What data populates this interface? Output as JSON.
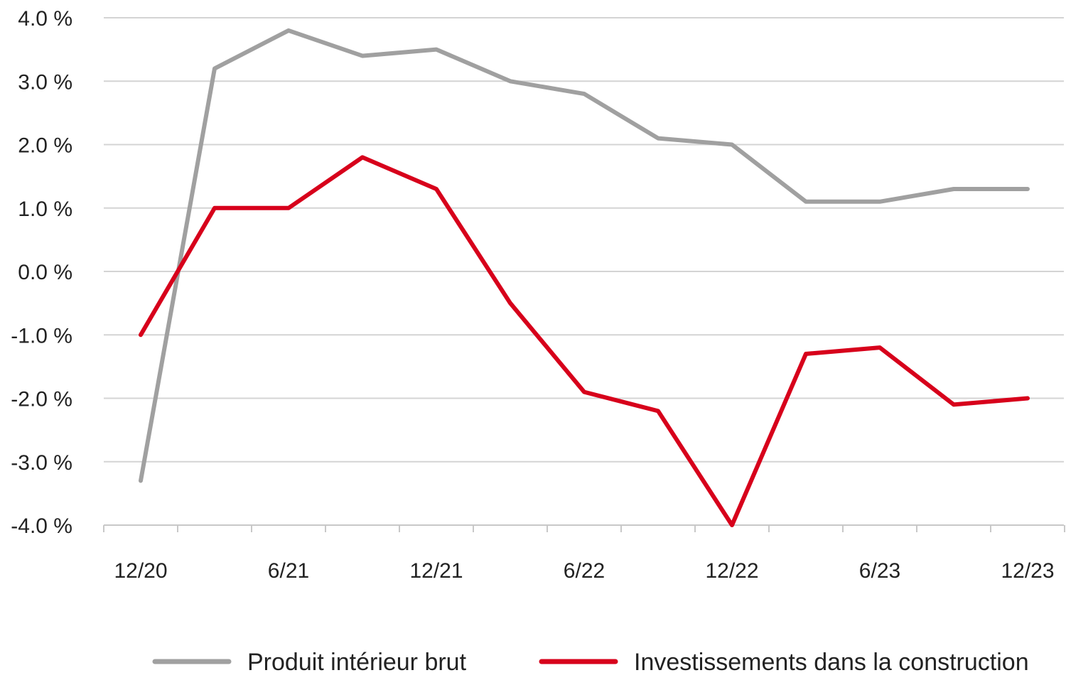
{
  "chart_data": {
    "type": "line",
    "title": "",
    "xlabel": "",
    "ylabel": "",
    "x": [
      "12/20",
      "3/21",
      "6/21",
      "9/21",
      "12/21",
      "3/22",
      "6/22",
      "9/22",
      "12/22",
      "3/23",
      "6/23",
      "9/23",
      "12/23"
    ],
    "x_tick_labels": [
      "12/20",
      "6/21",
      "12/21",
      "6/22",
      "12/22",
      "6/23",
      "12/23"
    ],
    "y_ticks": [
      4,
      3,
      2,
      1,
      0,
      -1,
      -2,
      -3,
      -4
    ],
    "y_tick_labels": [
      "4.0 %",
      "3.0 %",
      "2.0 %",
      "1.0 %",
      "0.0 %",
      "-1.0 %",
      "-2.0 %",
      "-3.0 %",
      "-4.0 %"
    ],
    "ylim": [
      -4,
      4
    ],
    "grid": true,
    "legend_position": "bottom",
    "series": [
      {
        "name": "Produit intérieur brut",
        "color": "#a0a0a0",
        "values": [
          -3.3,
          3.2,
          3.8,
          3.4,
          3.5,
          3.0,
          2.8,
          2.1,
          2.0,
          1.1,
          1.1,
          1.3,
          1.3
        ]
      },
      {
        "name": "Investissements dans la construction",
        "color": "#d7001b",
        "values": [
          -1.0,
          1.0,
          1.0,
          1.8,
          1.3,
          -0.5,
          -1.9,
          -2.2,
          -4.0,
          -1.3,
          -1.2,
          -2.1,
          -2.0
        ]
      }
    ]
  }
}
